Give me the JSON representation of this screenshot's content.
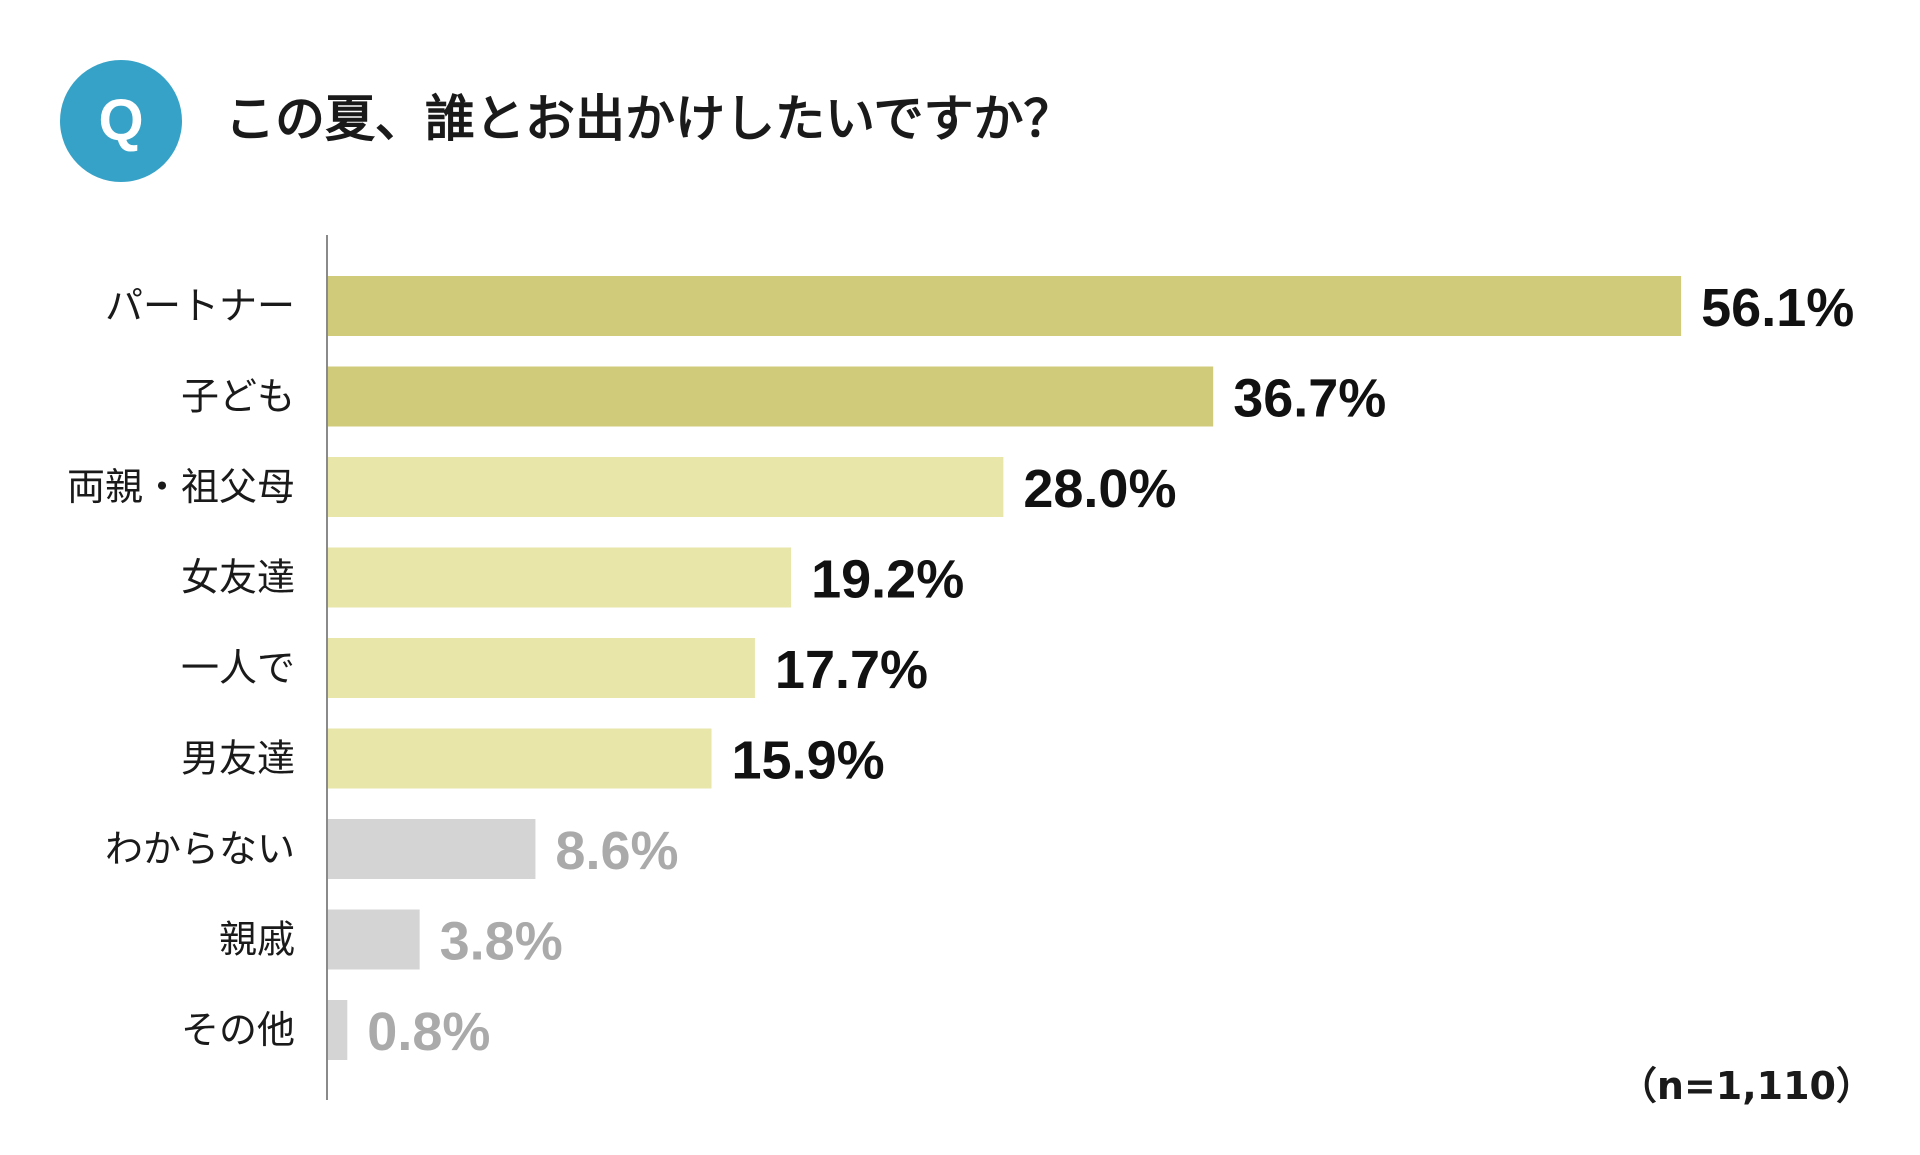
{
  "badge": {
    "label": "Q",
    "color": "#37a2c7"
  },
  "question": "この夏、誰とお出かけしたいですか？",
  "sample_size": "（n=1,110）",
  "chart_data": {
    "type": "bar",
    "orientation": "horizontal",
    "categories": [
      "パートナー",
      "子ども",
      "両親・祖父母",
      "女友達",
      "一人で",
      "男友達",
      "わからない",
      "親戚",
      "その他"
    ],
    "values": [
      56.1,
      36.7,
      28.0,
      19.2,
      17.7,
      15.9,
      8.6,
      3.8,
      0.8
    ],
    "value_labels": [
      "56.1%",
      "36.7%",
      "28.0%",
      "19.2%",
      "17.7%",
      "15.9%",
      "8.6%",
      "3.8%",
      "0.8%"
    ],
    "unit": "%",
    "bar_colors": [
      "#d0cb7b",
      "#d0cb7b",
      "#e9e6aa",
      "#e9e6aa",
      "#e9e6aa",
      "#e9e6aa",
      "#d4d4d4",
      "#d4d4d4",
      "#d4d4d4"
    ],
    "label_colors": [
      "#111111",
      "#111111",
      "#111111",
      "#111111",
      "#111111",
      "#111111",
      "#aaaaaa",
      "#aaaaaa",
      "#aaaaaa"
    ],
    "grid": false,
    "legend": "none"
  }
}
